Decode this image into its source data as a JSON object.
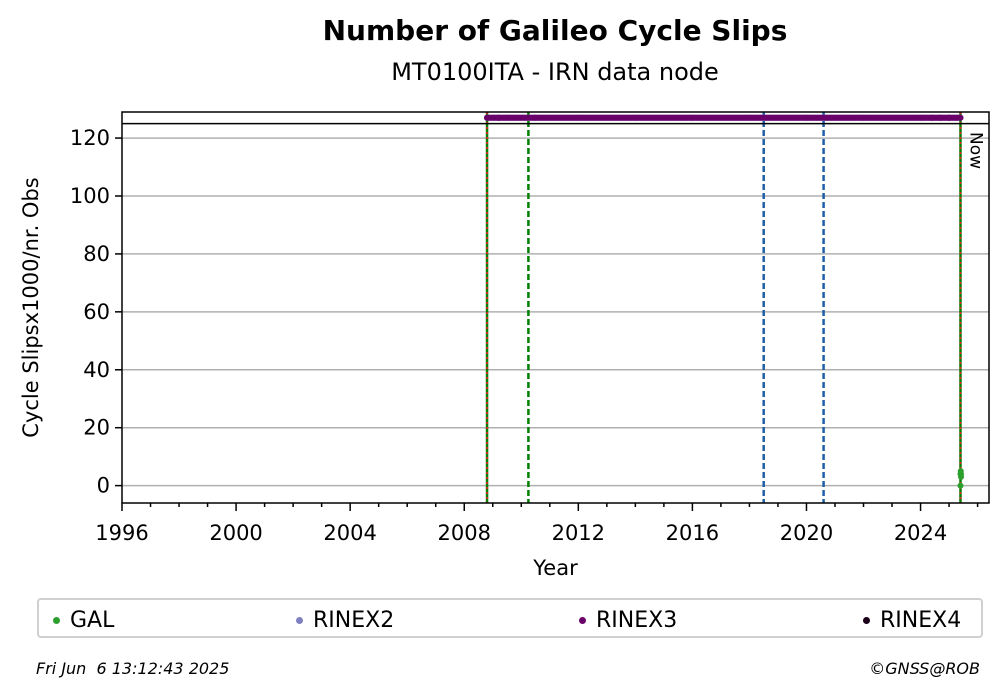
{
  "chart_data": {
    "type": "scatter",
    "title": "Number of Galileo Cycle Slips",
    "subtitle": "MT0100ITA - IRN data node",
    "xlabel": "Year",
    "ylabel": "Cycle Slipsx1000/nr. Obs",
    "xlim": [
      1996,
      2026.4
    ],
    "ylim": [
      -6,
      129
    ],
    "x_ticks": [
      1996,
      2000,
      2004,
      2008,
      2012,
      2016,
      2020,
      2024
    ],
    "y_ticks": [
      0,
      20,
      40,
      60,
      80,
      100,
      120
    ],
    "grid": "horizontal",
    "series": [
      {
        "name": "GAL",
        "color": "#2ca02c",
        "x": [
          2025.4,
          2025.4,
          2025.41,
          2025.42,
          2025.42
        ],
        "y": [
          0,
          4,
          5,
          4,
          3
        ]
      },
      {
        "name": "RINEX2",
        "color": "#7f80bf",
        "x": [
          2008.8,
          2009.5,
          2010.5,
          2012.0,
          2014.0,
          2016.0,
          2018.0,
          2020.0,
          2022.0,
          2024.0,
          2025.3
        ],
        "y": [
          127,
          127,
          127,
          127,
          127,
          127,
          127,
          127,
          127,
          127,
          127
        ]
      },
      {
        "name": "RINEX3",
        "color": "#6a006a",
        "x": [
          2008.8,
          2009.2,
          2024.4,
          2024.7,
          2025.0,
          2025.4
        ],
        "y": [
          127,
          127,
          127,
          127,
          127,
          127
        ]
      },
      {
        "name": "RINEX4",
        "color": "#1a0018",
        "x": [],
        "y": []
      }
    ],
    "reference_lines": [
      {
        "x": 2008.8,
        "color": "#008000",
        "style": "solid"
      },
      {
        "x": 2008.8,
        "color": "#d62728",
        "style": "dotted"
      },
      {
        "x": 2010.25,
        "color": "#008000",
        "style": "dashed"
      },
      {
        "x": 2018.5,
        "color": "#1f5fa8",
        "style": "dashed"
      },
      {
        "x": 2020.6,
        "color": "#1f5fa8",
        "style": "dashed"
      },
      {
        "x": 2025.4,
        "color": "#008000",
        "style": "solid"
      },
      {
        "x": 2025.4,
        "color": "#d62728",
        "style": "dotted"
      }
    ],
    "hline": 125,
    "now_label": "Now",
    "now_x": 2025.4
  },
  "legend": {
    "items": [
      "GAL",
      "RINEX2",
      "RINEX3",
      "RINEX4"
    ],
    "colors": [
      "#2ca02c",
      "#7f80bf",
      "#6a006a",
      "#1a0018"
    ]
  },
  "footer": {
    "timestamp": "Fri Jun  6 13:12:43 2025",
    "copyright": "©GNSS@ROB"
  }
}
